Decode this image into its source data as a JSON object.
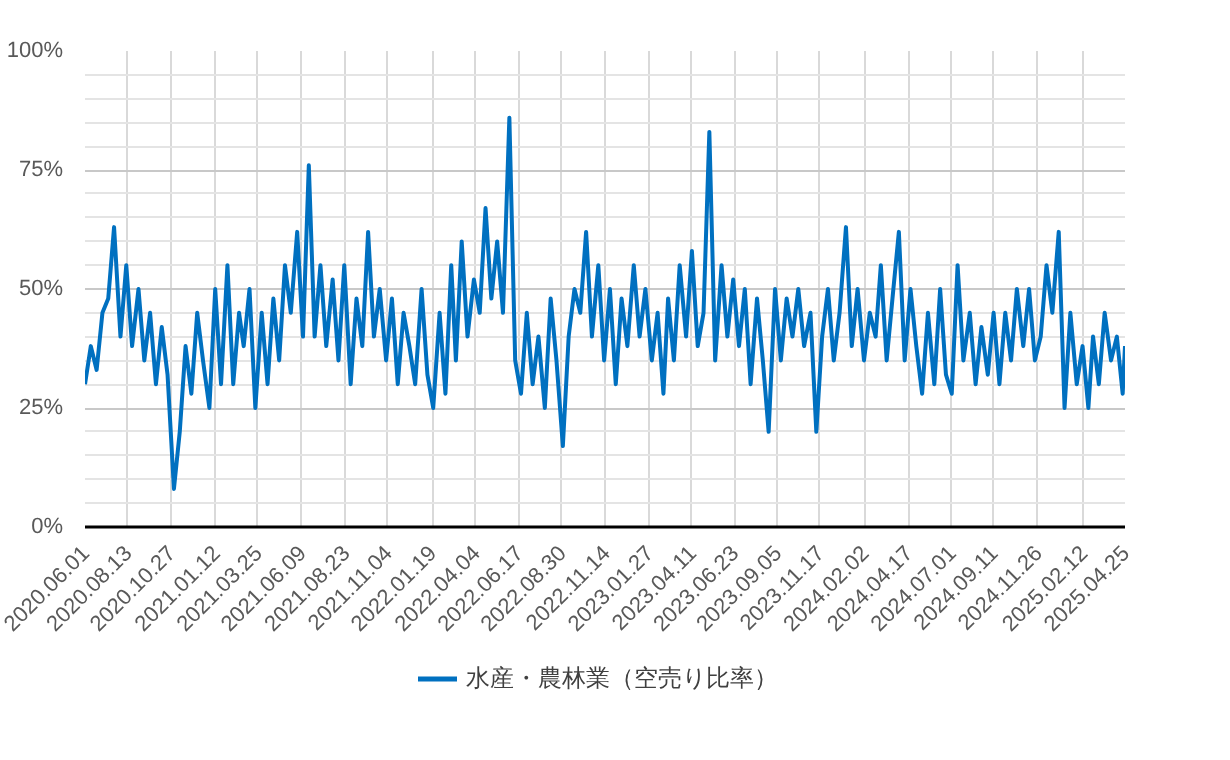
{
  "chart_data": {
    "type": "line",
    "x": [
      "2020-06-01",
      "2020-06-11",
      "2020-06-21",
      "2020-07-01",
      "2020-07-11",
      "2020-07-21",
      "2020-08-01",
      "2020-08-11",
      "2020-08-21",
      "2020-09-01",
      "2020-09-11",
      "2020-09-21",
      "2020-10-01",
      "2020-10-11",
      "2020-10-21",
      "2020-11-01",
      "2020-11-11",
      "2020-11-21",
      "2020-12-01",
      "2020-12-11",
      "2020-12-21",
      "2021-01-01",
      "2021-01-11",
      "2021-01-21",
      "2021-02-01",
      "2021-02-11",
      "2021-02-21",
      "2021-03-01",
      "2021-03-11",
      "2021-03-21",
      "2021-04-01",
      "2021-04-11",
      "2021-04-21",
      "2021-05-01",
      "2021-05-11",
      "2021-05-21",
      "2021-06-01",
      "2021-06-11",
      "2021-06-21",
      "2021-07-01",
      "2021-07-11",
      "2021-07-21",
      "2021-08-01",
      "2021-08-11",
      "2021-08-21",
      "2021-09-01",
      "2021-09-11",
      "2021-09-21",
      "2021-10-01",
      "2021-10-11",
      "2021-10-21",
      "2021-11-01",
      "2021-11-11",
      "2021-11-21",
      "2021-12-01",
      "2021-12-11",
      "2021-12-21",
      "2022-01-01",
      "2022-01-11",
      "2022-01-21",
      "2022-02-01",
      "2022-02-11",
      "2022-02-21",
      "2022-03-01",
      "2022-03-11",
      "2022-03-21",
      "2022-04-01",
      "2022-04-11",
      "2022-04-21",
      "2022-05-01",
      "2022-05-11",
      "2022-05-21",
      "2022-06-01",
      "2022-06-11",
      "2022-06-21",
      "2022-07-01",
      "2022-07-11",
      "2022-07-21",
      "2022-08-01",
      "2022-08-11",
      "2022-08-21",
      "2022-09-01",
      "2022-09-11",
      "2022-09-21",
      "2022-10-01",
      "2022-10-11",
      "2022-10-21",
      "2022-11-01",
      "2022-11-11",
      "2022-11-21",
      "2022-12-01",
      "2022-12-11",
      "2022-12-21",
      "2023-01-01",
      "2023-01-11",
      "2023-01-21",
      "2023-02-01",
      "2023-02-11",
      "2023-02-21",
      "2023-03-01",
      "2023-03-11",
      "2023-03-21",
      "2023-04-01",
      "2023-04-11",
      "2023-04-21",
      "2023-05-01",
      "2023-05-11",
      "2023-05-21",
      "2023-06-01",
      "2023-06-11",
      "2023-06-21",
      "2023-07-01",
      "2023-07-11",
      "2023-07-21",
      "2023-08-01",
      "2023-08-11",
      "2023-08-21",
      "2023-09-01",
      "2023-09-11",
      "2023-09-21",
      "2023-10-01",
      "2023-10-11",
      "2023-10-21",
      "2023-11-01",
      "2023-11-11",
      "2023-11-21",
      "2023-12-01",
      "2023-12-11",
      "2023-12-21",
      "2024-01-01",
      "2024-01-11",
      "2024-01-21",
      "2024-02-01",
      "2024-02-11",
      "2024-02-21",
      "2024-03-01",
      "2024-03-11",
      "2024-03-21",
      "2024-04-01",
      "2024-04-11",
      "2024-04-21",
      "2024-05-01",
      "2024-05-11",
      "2024-05-21",
      "2024-06-01",
      "2024-06-11",
      "2024-06-21",
      "2024-07-01",
      "2024-07-11",
      "2024-07-21",
      "2024-08-01",
      "2024-08-11",
      "2024-08-21",
      "2024-09-01",
      "2024-09-11",
      "2024-09-21",
      "2024-10-01",
      "2024-10-11",
      "2024-10-21",
      "2024-11-01",
      "2024-11-11",
      "2024-11-21",
      "2024-12-01",
      "2024-12-11",
      "2024-12-21",
      "2025-01-01",
      "2025-01-11",
      "2025-01-21",
      "2025-02-01",
      "2025-02-11",
      "2025-02-21",
      "2025-03-01",
      "2025-03-11",
      "2025-03-21",
      "2025-04-01",
      "2025-04-11",
      "2025-04-21",
      "2025-04-25"
    ],
    "series": [
      {
        "name": "水産・農林業（空売り比率）",
        "color": "#0070c0",
        "values": [
          30,
          38,
          33,
          45,
          48,
          63,
          40,
          55,
          38,
          50,
          35,
          45,
          30,
          42,
          32,
          8,
          20,
          38,
          28,
          45,
          35,
          25,
          50,
          30,
          55,
          30,
          45,
          38,
          50,
          25,
          45,
          30,
          48,
          35,
          55,
          45,
          62,
          40,
          76,
          40,
          55,
          38,
          52,
          35,
          55,
          30,
          48,
          38,
          62,
          40,
          50,
          35,
          48,
          30,
          45,
          38,
          30,
          50,
          32,
          25,
          45,
          28,
          55,
          35,
          60,
          40,
          52,
          45,
          67,
          48,
          60,
          45,
          86,
          35,
          28,
          45,
          30,
          40,
          25,
          48,
          35,
          17,
          40,
          50,
          45,
          62,
          40,
          55,
          35,
          50,
          30,
          48,
          38,
          55,
          40,
          50,
          35,
          45,
          28,
          48,
          35,
          55,
          40,
          58,
          38,
          45,
          83,
          35,
          55,
          40,
          52,
          38,
          50,
          30,
          48,
          35,
          20,
          50,
          35,
          48,
          40,
          50,
          38,
          45,
          20,
          40,
          50,
          35,
          45,
          63,
          38,
          50,
          35,
          45,
          40,
          55,
          35,
          48,
          62,
          35,
          50,
          38,
          28,
          45,
          30,
          50,
          32,
          28,
          55,
          35,
          45,
          30,
          42,
          32,
          45,
          30,
          45,
          35,
          50,
          38,
          50,
          35,
          40,
          55,
          45,
          62,
          25,
          45,
          30,
          38,
          25,
          40,
          30,
          45,
          35,
          40,
          28,
          38
        ]
      }
    ],
    "xlim": [
      "2020-06-01",
      "2025-04-25"
    ],
    "xticks": [
      {
        "value": "2020-06-01",
        "label": "2020.06.01"
      },
      {
        "value": "2020-08-13",
        "label": "2020.08.13"
      },
      {
        "value": "2020-10-27",
        "label": "2020.10.27"
      },
      {
        "value": "2021-01-12",
        "label": "2021.01.12"
      },
      {
        "value": "2021-03-25",
        "label": "2021.03.25"
      },
      {
        "value": "2021-06-09",
        "label": "2021.06.09"
      },
      {
        "value": "2021-08-23",
        "label": "2021.08.23"
      },
      {
        "value": "2021-11-04",
        "label": "2021.11.04"
      },
      {
        "value": "2022-01-19",
        "label": "2022.01.19"
      },
      {
        "value": "2022-04-04",
        "label": "2022.04.04"
      },
      {
        "value": "2022-06-17",
        "label": "2022.06.17"
      },
      {
        "value": "2022-08-30",
        "label": "2022.08.30"
      },
      {
        "value": "2022-11-14",
        "label": "2022.11.14"
      },
      {
        "value": "2023-01-27",
        "label": "2023.01.27"
      },
      {
        "value": "2023-04-11",
        "label": "2023.04.11"
      },
      {
        "value": "2023-06-23",
        "label": "2023.06.23"
      },
      {
        "value": "2023-09-05",
        "label": "2023.09.05"
      },
      {
        "value": "2023-11-17",
        "label": "2023.11.17"
      },
      {
        "value": "2024-02-02",
        "label": "2024.02.02"
      },
      {
        "value": "2024-04-17",
        "label": "2024.04.17"
      },
      {
        "value": "2024-07-01",
        "label": "2024.07.01"
      },
      {
        "value": "2024-09-11",
        "label": "2024.09.11"
      },
      {
        "value": "2024-11-26",
        "label": "2024.11.26"
      },
      {
        "value": "2025-02-12",
        "label": "2025.02.12"
      },
      {
        "value": "2025-04-25",
        "label": "2025.04.25"
      }
    ],
    "ylim": [
      0,
      100
    ],
    "yticks": [
      {
        "value": 0,
        "label": "0%"
      },
      {
        "value": 5,
        "label": null
      },
      {
        "value": 10,
        "label": null
      },
      {
        "value": 15,
        "label": null
      },
      {
        "value": 20,
        "label": null
      },
      {
        "value": 25,
        "label": "25%"
      },
      {
        "value": 30,
        "label": null
      },
      {
        "value": 35,
        "label": null
      },
      {
        "value": 40,
        "label": null
      },
      {
        "value": 45,
        "label": null
      },
      {
        "value": 50,
        "label": "50%"
      },
      {
        "value": 55,
        "label": null
      },
      {
        "value": 60,
        "label": null
      },
      {
        "value": 65,
        "label": null
      },
      {
        "value": 70,
        "label": null
      },
      {
        "value": 75,
        "label": "75%"
      },
      {
        "value": 80,
        "label": null
      },
      {
        "value": 85,
        "label": null
      },
      {
        "value": 90,
        "label": null
      },
      {
        "value": 95,
        "label": null
      },
      {
        "value": 100,
        "label": "100%"
      }
    ],
    "grid": true,
    "legend": "bottom",
    "marker": "none",
    "line_style": "solid"
  }
}
